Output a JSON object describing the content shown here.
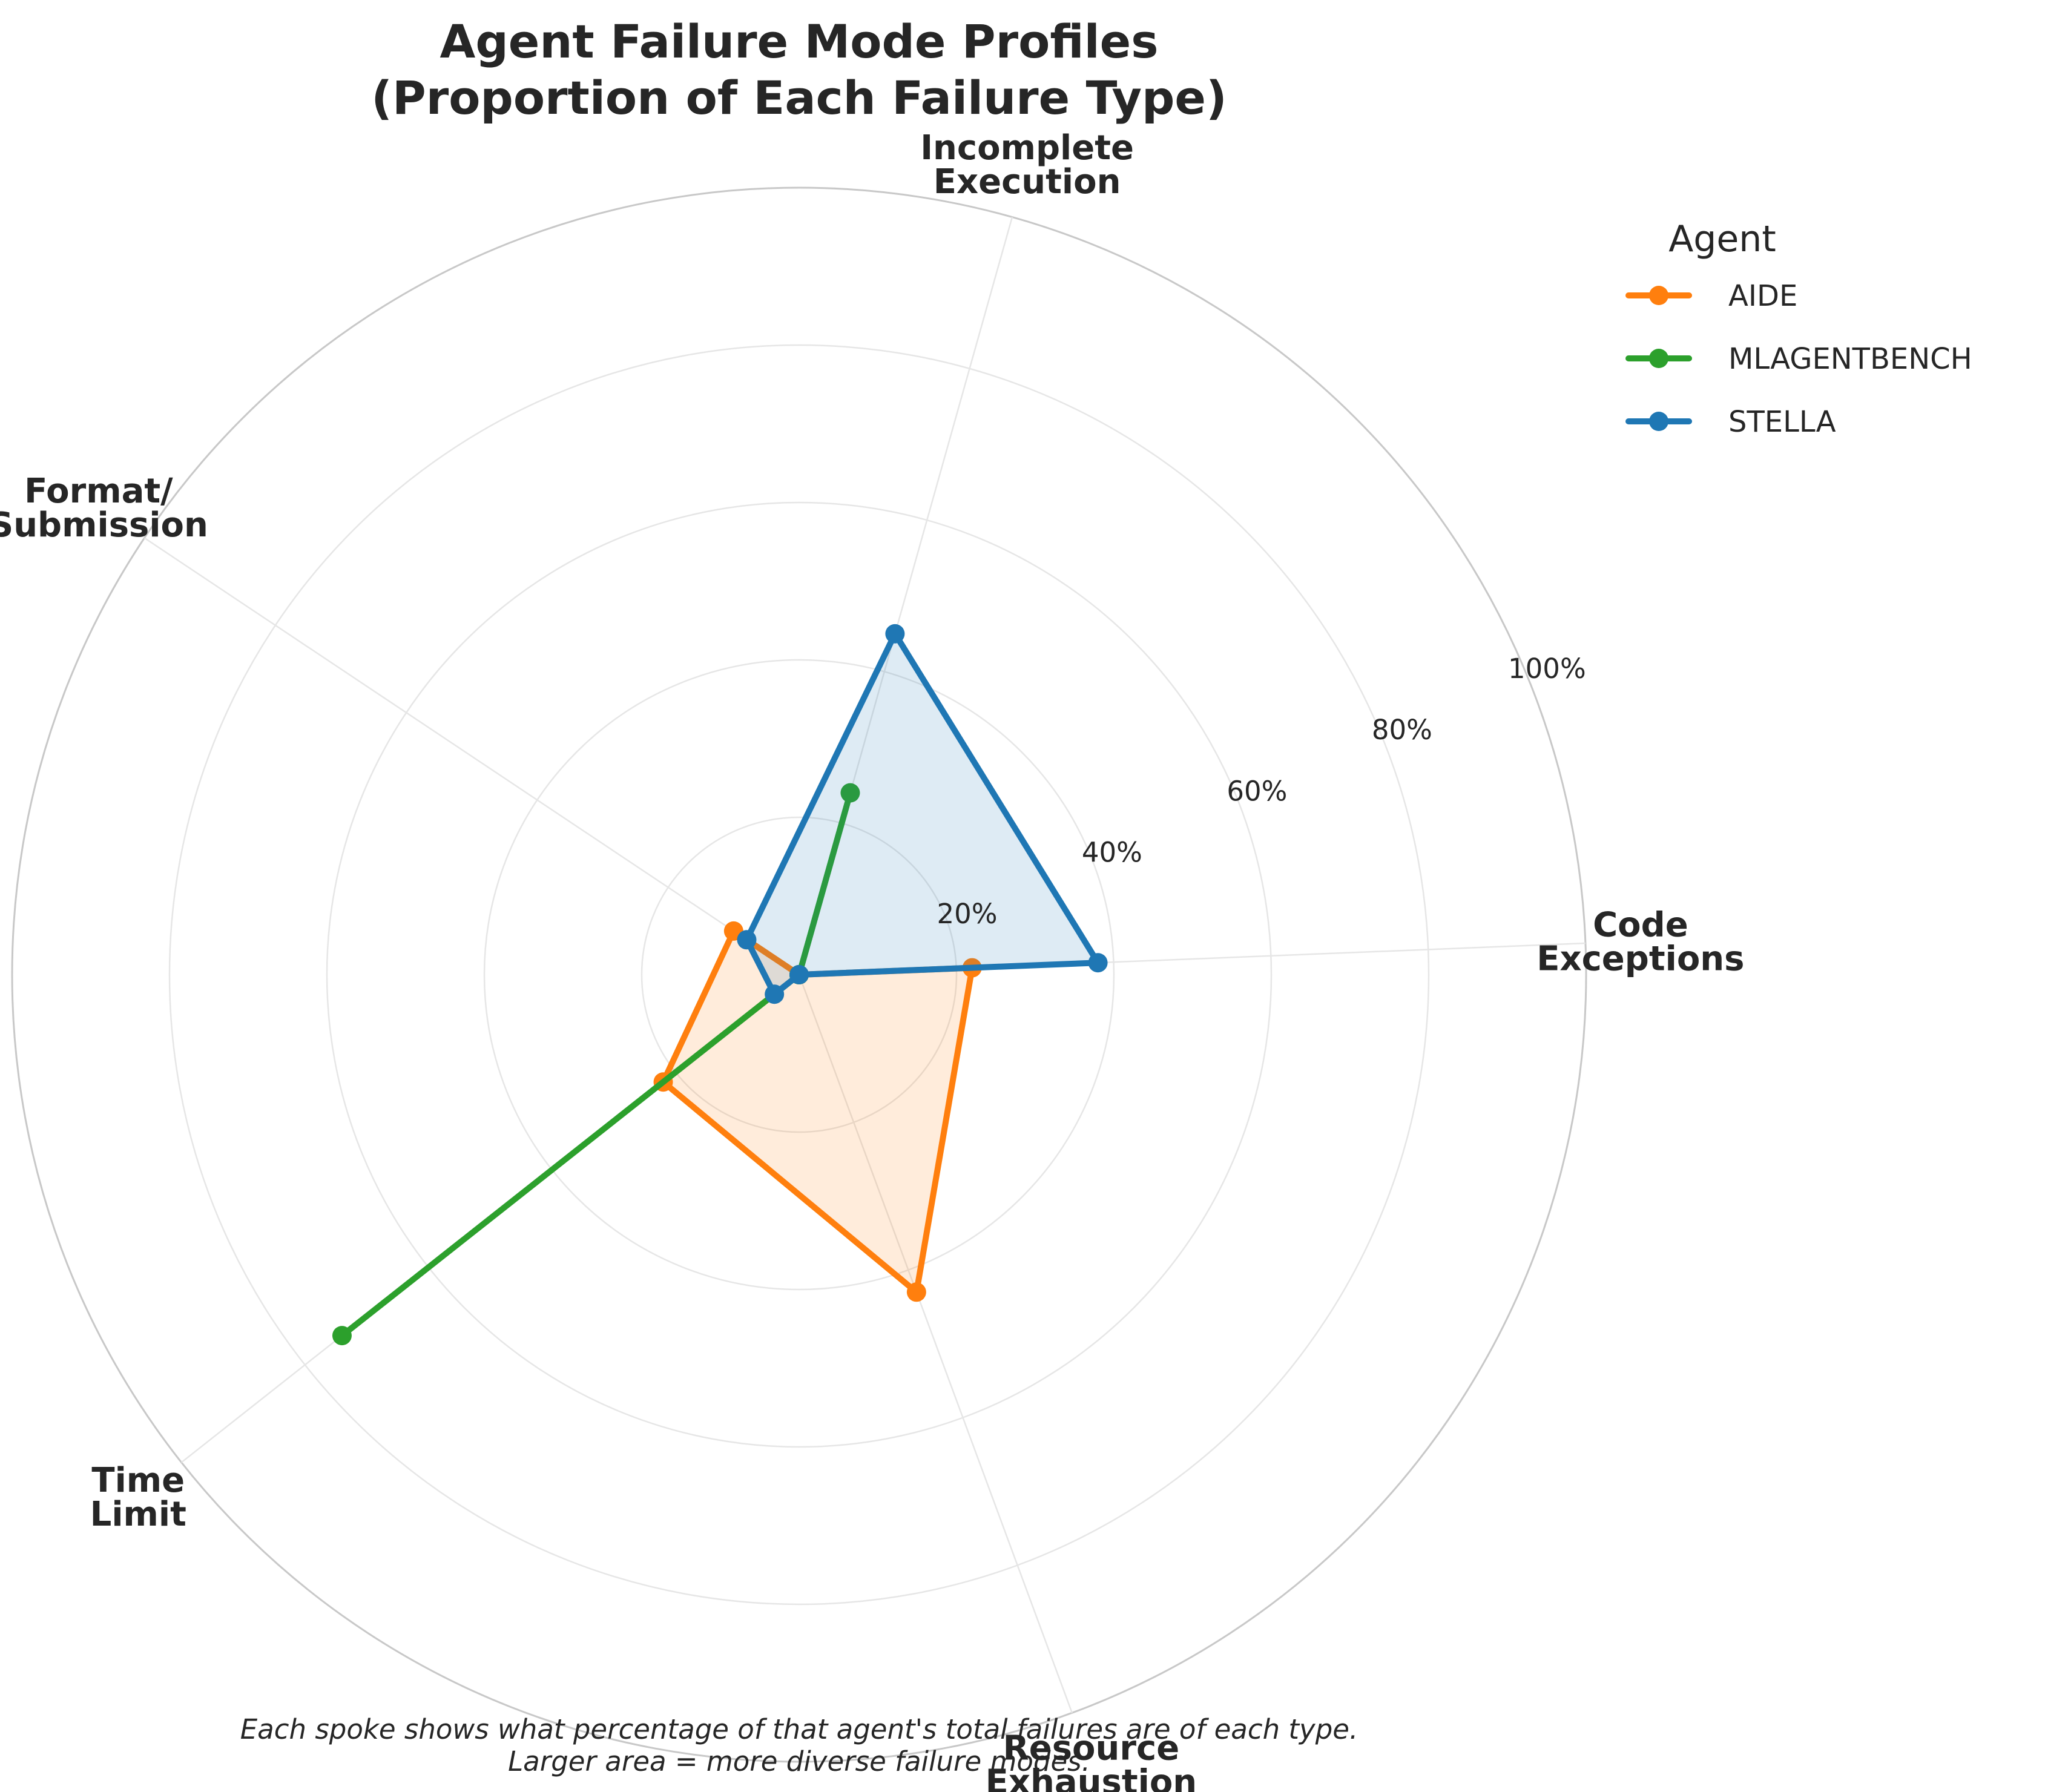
{
  "chart_data": {
    "type": "radar",
    "title_lines": [
      "Agent Failure Mode Profiles",
      "(Proportion of Each Failure Type)"
    ],
    "axes": [
      {
        "lines": [
          "Code",
          "Exceptions"
        ]
      },
      {
        "lines": [
          "Incomplete",
          "Execution"
        ]
      },
      {
        "lines": [
          "Format/",
          "Submission"
        ]
      },
      {
        "lines": [
          "Time",
          "Limit"
        ]
      },
      {
        "lines": [
          "Resource",
          "Exhaustion"
        ]
      }
    ],
    "r_ticks": [
      "20%",
      "40%",
      "60%",
      "80%",
      "100%"
    ],
    "r_range": [
      0,
      100
    ],
    "grid": true,
    "series": [
      {
        "name": "AIDE",
        "color": "#ff7f0e",
        "filled": true,
        "values": [
          22,
          0,
          10,
          22,
          43
        ]
      },
      {
        "name": "MLAGENTBENCH",
        "color": "#2ca02c",
        "filled": false,
        "values": [
          0,
          24,
          0,
          74,
          0
        ]
      },
      {
        "name": "STELLA",
        "color": "#1f77b4",
        "filled": true,
        "values": [
          38,
          45,
          8,
          4,
          0
        ]
      }
    ],
    "legend": {
      "title": "Agent",
      "placement": "top-right"
    },
    "note_lines": [
      "Each spoke shows what percentage of that agent's total failures are of each type.",
      "Larger area = more diverse failure modes."
    ]
  }
}
